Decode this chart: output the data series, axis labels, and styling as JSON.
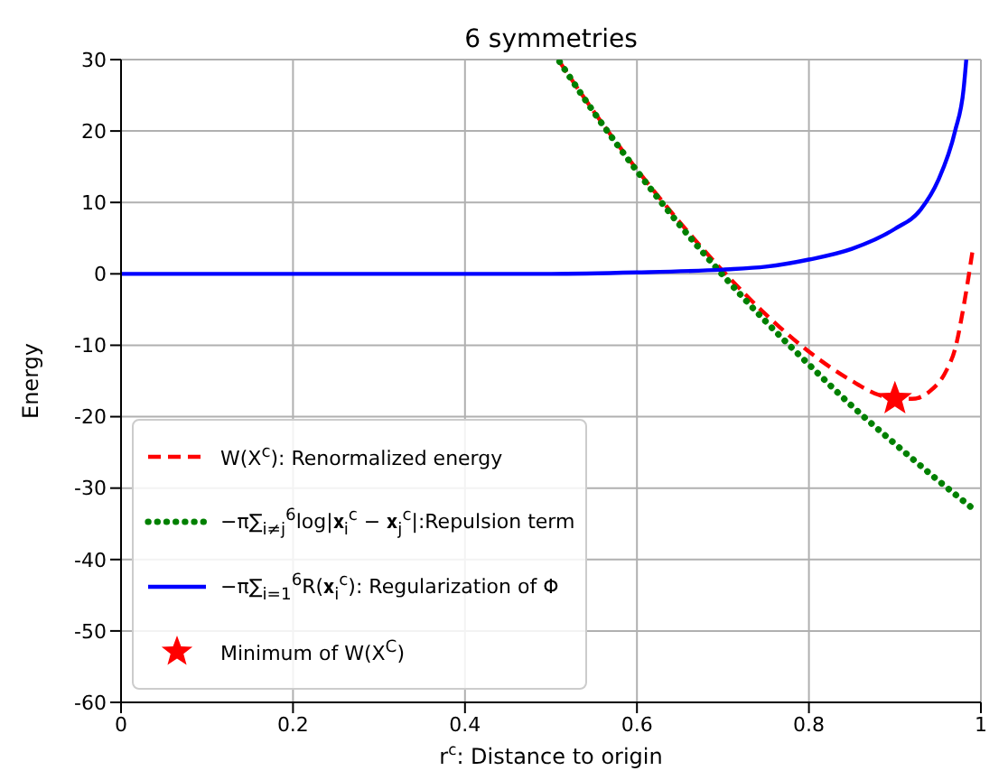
{
  "chart_data": {
    "type": "line",
    "title": "6 symmetries",
    "xlabel": "r$^{c}$: Distance to origin",
    "ylabel": "Energy",
    "xlim": [
      0,
      1
    ],
    "xticks": [
      0,
      0.2,
      0.4,
      0.6,
      0.8,
      1
    ],
    "ylim": [
      -60,
      30
    ],
    "yticks": [
      -60,
      -50,
      -40,
      -30,
      -20,
      -10,
      0,
      10,
      20,
      30
    ],
    "grid": true,
    "legend": "bottom left",
    "series": [
      {
        "name": "W(X$^{c}$): Renormalized energy",
        "line_style": "dashed",
        "marker": "none",
        "color": "#ff0000",
        "x": [
          0.51,
          0.55,
          0.6,
          0.65,
          0.7,
          0.75,
          0.8,
          0.85,
          0.88,
          0.9,
          0.92,
          0.94,
          0.96,
          0.97,
          0.98,
          0.99
        ],
        "values": [
          29.7,
          22.7,
          14.6,
          7.2,
          0.4,
          -5.7,
          -10.9,
          -15.0,
          -16.9,
          -17.5,
          -17.5,
          -16.5,
          -13.5,
          -10.5,
          -4.5,
          3
        ]
      },
      {
        "name": "−π∑$_{i≠j}$$^{6}$log|𝐱$_{i}$$^{c}$ − 𝐱$_{j}$$^{c}$|:Repulsion term",
        "line_style": "dotted",
        "marker": "none",
        "color": "#008000",
        "x": [
          0.51,
          0.55,
          0.6,
          0.65,
          0.7,
          0.75,
          0.8,
          0.85,
          0.9,
          0.95,
          0.99
        ],
        "values": [
          29.7,
          22.6,
          14.4,
          6.8,
          -0.2,
          -6.7,
          -12.7,
          -18.5,
          -23.8,
          -28.9,
          -32.8
        ]
      },
      {
        "name": "−π∑$_{i=1}$$^{6}$R(𝐱$_{i}$$^{c}$): Regularization of Φ",
        "line_style": "solid",
        "marker": "none",
        "color": "#0000ff",
        "x": [
          0,
          0.5,
          0.6,
          0.7,
          0.75,
          0.8,
          0.85,
          0.9,
          0.93,
          0.95,
          0.97,
          0.98,
          0.983
        ],
        "values": [
          0,
          0,
          0.2,
          0.6,
          1.0,
          2.0,
          3.5,
          6.3,
          9,
          13,
          20,
          26,
          30
        ]
      },
      {
        "name": "Minimum of W(X$^{C}$)",
        "type": "scatter",
        "marker": "star",
        "color": "#ff0000",
        "x": [
          0.9
        ],
        "values": [
          -17.5
        ]
      }
    ]
  }
}
